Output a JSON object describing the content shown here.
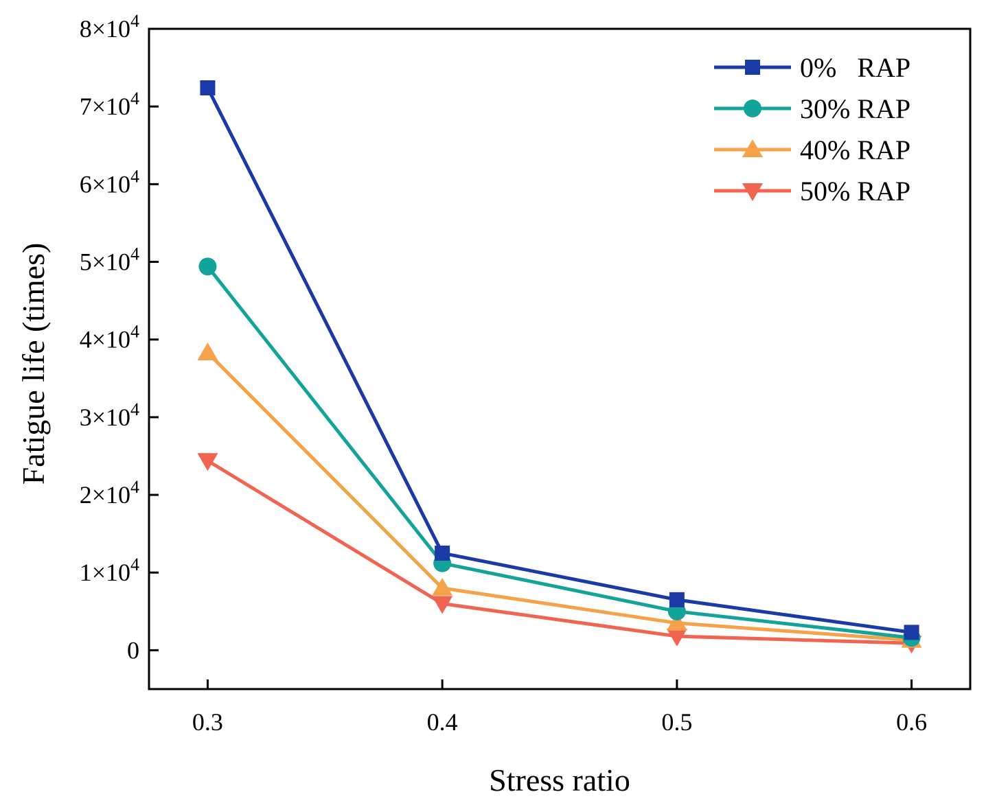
{
  "chart_data": {
    "type": "line",
    "title": "",
    "xlabel": "Stress ratio",
    "ylabel": "Fatigue life (times)",
    "x": [
      0.3,
      0.4,
      0.5,
      0.6
    ],
    "xtick_labels": [
      "0.3",
      "0.4",
      "0.5",
      "0.6"
    ],
    "xlim": [
      0.275,
      0.625
    ],
    "ylim": [
      -5000,
      80000
    ],
    "yticks": [
      {
        "value": 0,
        "mantissa": "0",
        "exp": ""
      },
      {
        "value": 10000,
        "mantissa": "1×10",
        "exp": "4"
      },
      {
        "value": 20000,
        "mantissa": "2×10",
        "exp": "4"
      },
      {
        "value": 30000,
        "mantissa": "3×10",
        "exp": "4"
      },
      {
        "value": 40000,
        "mantissa": "4×10",
        "exp": "4"
      },
      {
        "value": 50000,
        "mantissa": "5×10",
        "exp": "4"
      },
      {
        "value": 60000,
        "mantissa": "6×10",
        "exp": "4"
      },
      {
        "value": 70000,
        "mantissa": "7×10",
        "exp": "4"
      },
      {
        "value": 80000,
        "mantissa": "8×10",
        "exp": "4"
      }
    ],
    "grid": false,
    "legend_position": "top-right",
    "series": [
      {
        "name": "0%   RAP",
        "color": "#1a3aa8",
        "marker": "square",
        "values": [
          72400,
          12500,
          6500,
          2300
        ]
      },
      {
        "name": "30% RAP",
        "color": "#12a39a",
        "marker": "circle",
        "values": [
          49400,
          11200,
          5000,
          1600
        ]
      },
      {
        "name": "40% RAP",
        "color": "#f5a24a",
        "marker": "triangle-up",
        "values": [
          38300,
          8000,
          3500,
          1300
        ]
      },
      {
        "name": "50% RAP",
        "color": "#f26452",
        "marker": "triangle-down",
        "values": [
          24400,
          6000,
          1800,
          900
        ]
      }
    ]
  }
}
